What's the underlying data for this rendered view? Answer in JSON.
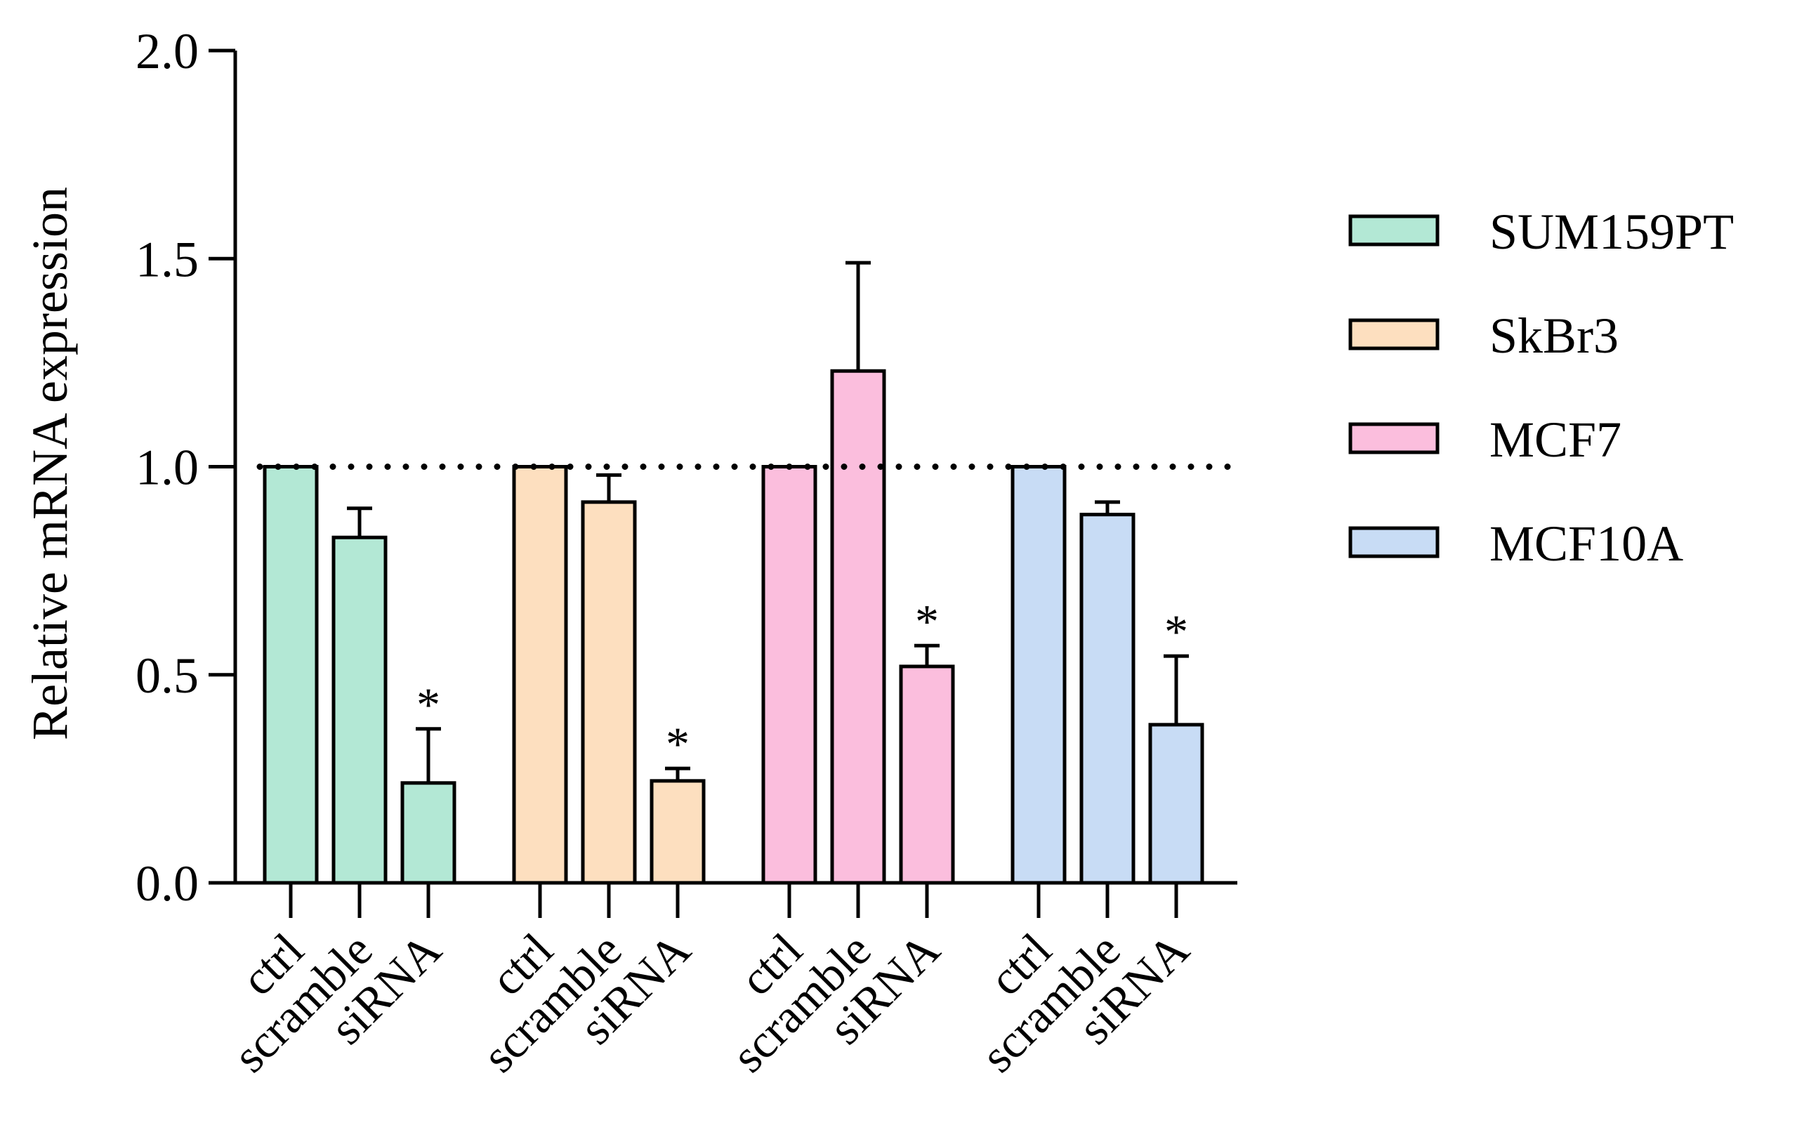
{
  "chart_data": {
    "type": "bar",
    "title": "",
    "xlabel": "",
    "ylabel": "Relative mRNA expression",
    "ylim": [
      0,
      2.0
    ],
    "yticks": [
      0.0,
      0.5,
      1.0,
      1.5,
      2.0
    ],
    "ytick_labels": [
      "0.0",
      "0.5",
      "1.0",
      "1.5",
      "2.0"
    ],
    "reference_line": 1.0,
    "categories": [
      "ctrl",
      "scramble",
      "siRNA"
    ],
    "groups": [
      {
        "name": "SUM159PT",
        "color": "#b3e8d5",
        "values": [
          1.0,
          0.83,
          0.24
        ],
        "errors": [
          0,
          0.07,
          0.13
        ],
        "significance": [
          "",
          "",
          "*"
        ]
      },
      {
        "name": "SkBr3",
        "color": "#fddfbf",
        "values": [
          1.0,
          0.915,
          0.245
        ],
        "errors": [
          0,
          0.065,
          0.03
        ],
        "significance": [
          "",
          "",
          "*"
        ]
      },
      {
        "name": "MCF7",
        "color": "#fbbedd",
        "values": [
          1.0,
          1.23,
          0.52
        ],
        "errors": [
          0,
          0.26,
          0.05
        ],
        "significance": [
          "",
          "",
          "*"
        ]
      },
      {
        "name": "MCF10A",
        "color": "#c8dcf5",
        "values": [
          1.0,
          0.885,
          0.38
        ],
        "errors": [
          0,
          0.03,
          0.165
        ],
        "significance": [
          "",
          "",
          "*"
        ]
      }
    ],
    "legend": {
      "position": "right",
      "entries": [
        "SUM159PT",
        "SkBr3",
        "MCF7",
        "MCF10A"
      ]
    }
  }
}
